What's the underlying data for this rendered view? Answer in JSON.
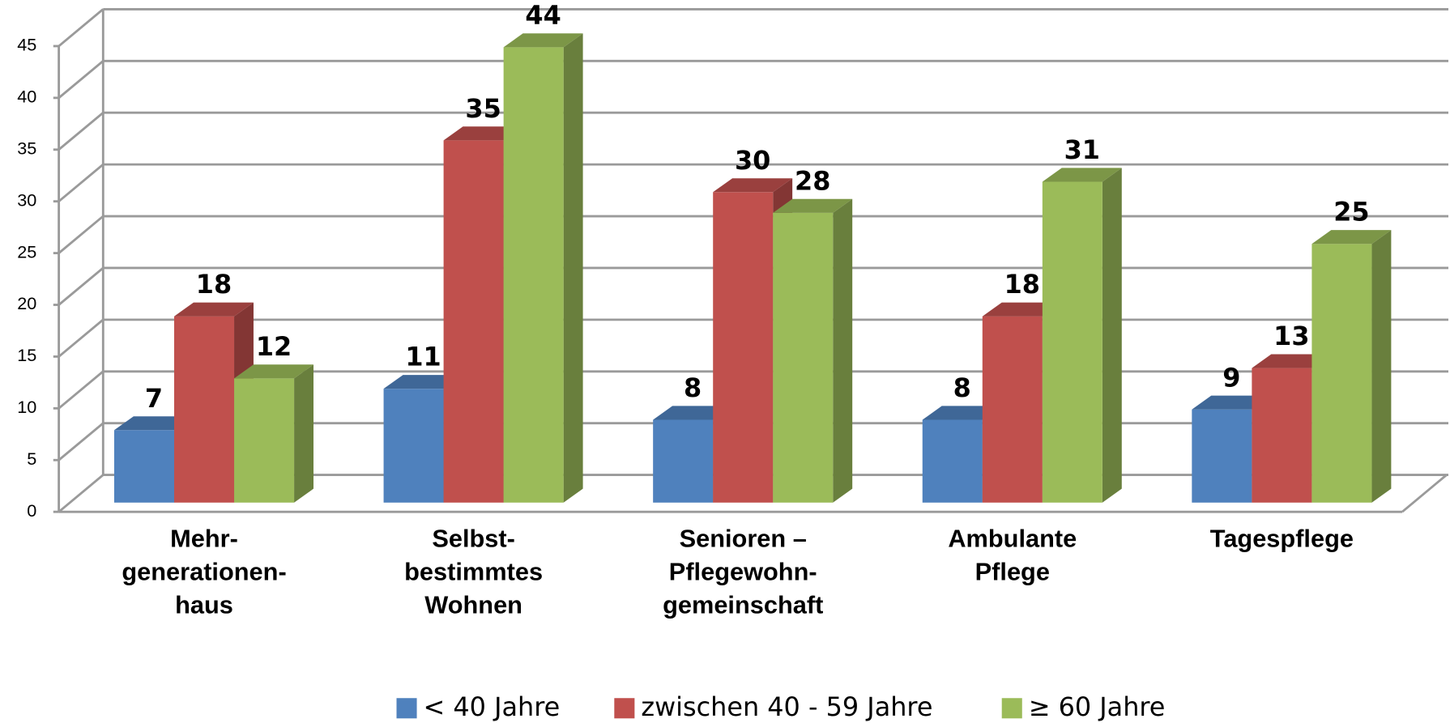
{
  "chart_data": {
    "type": "bar3d",
    "categories": [
      "Mehr-\ngenerationen-\nhaus",
      "Selbst-\nbestimmtes\nWohnen",
      "Senioren –\nPflegewohn-\ngemeinschaft",
      "Ambulante\nPflege",
      "Tagespflege"
    ],
    "series": [
      {
        "name": "< 40 Jahre",
        "color": "#4f81bd",
        "values": [
          7,
          11,
          8,
          8,
          9
        ]
      },
      {
        "name": "zwischen 40 - 59 Jahre",
        "color": "#c0504d",
        "values": [
          18,
          35,
          30,
          18,
          13
        ]
      },
      {
        "name": "≥ 60 Jahre",
        "color": "#9bbb59",
        "values": [
          12,
          44,
          28,
          31,
          25
        ]
      }
    ],
    "ylim": [
      0,
      45
    ],
    "yticks": [
      0,
      5,
      10,
      15,
      20,
      25,
      30,
      35,
      40,
      45
    ],
    "grid": true,
    "legend": "bottom"
  }
}
